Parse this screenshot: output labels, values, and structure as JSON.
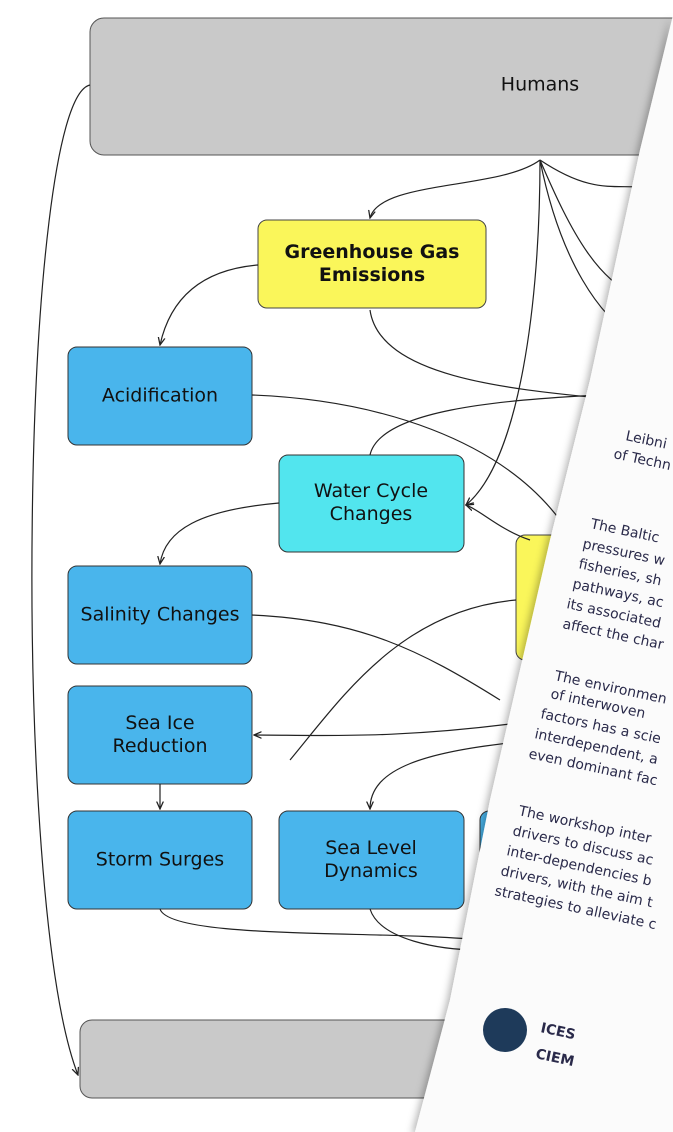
{
  "nodes": [
    {
      "label": [
        "Humans"
      ]
    },
    {
      "label": [
        "Greenhouse Gas",
        "Emissions"
      ]
    },
    {
      "label": [
        "Acidification"
      ]
    },
    {
      "label": [
        "Water Cycle",
        "Changes"
      ]
    },
    {
      "label": [
        "Salinity Changes"
      ]
    },
    {
      "label": [
        "Sea Ice",
        "Reduction"
      ]
    },
    {
      "label": [
        "Storm Surges"
      ]
    },
    {
      "label": [
        "Sea Level",
        "Dynamics"
      ]
    }
  ],
  "document": {
    "lines": [
      "Leibni",
      "of Techn",
      "The Baltic",
      "pressures w",
      "fisheries, sh",
      "pathways, ac",
      "its associated",
      "affect the char",
      "The environmen",
      "of interwoven",
      "factors has a scie",
      "interdependent, a",
      "even dominant fac",
      "The workshop inter",
      "drivers to discuss ac",
      "inter-dependencies b",
      "drivers, with the aim t",
      "strategies to alleviate c"
    ],
    "logo": [
      "ICES",
      "CIEM"
    ]
  }
}
